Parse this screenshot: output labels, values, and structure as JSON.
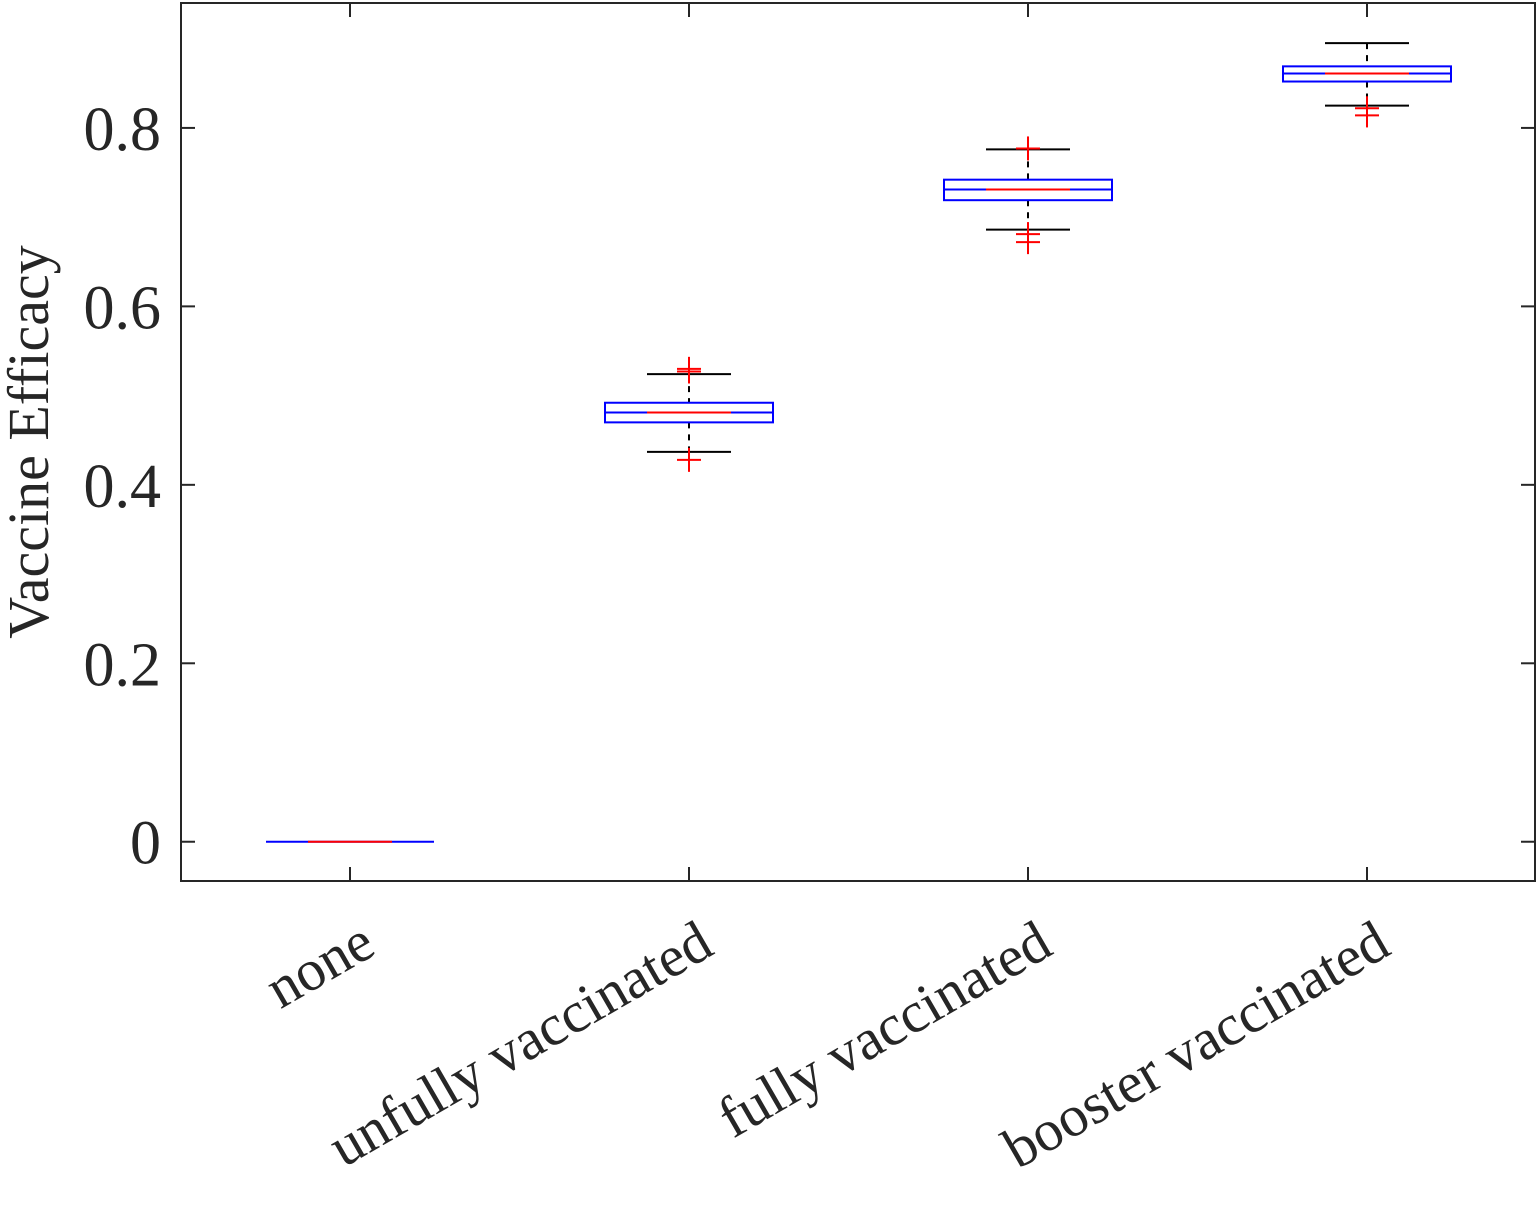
{
  "chart_data": {
    "type": "boxplot",
    "ylabel": "Vaccine Efficacy",
    "xlabel": "",
    "title": "",
    "ylim": [
      -0.044,
      0.94
    ],
    "yticks": [
      0,
      0.2,
      0.4,
      0.6,
      0.8
    ],
    "ytick_labels": [
      "0",
      "0.2",
      "0.4",
      "0.6",
      "0.8"
    ],
    "categories": [
      "none",
      "unfully vaccinated",
      "fully vaccinated",
      "booster vaccinated"
    ],
    "boxes": [
      {
        "category": "none",
        "whisker_low": 0.0,
        "q1": 0.0,
        "median": 0.0,
        "q3": 0.0,
        "whisker_high": 0.0,
        "outliers": []
      },
      {
        "category": "unfully vaccinated",
        "whisker_low": 0.437,
        "q1": 0.47,
        "median": 0.481,
        "q3": 0.492,
        "whisker_high": 0.524,
        "outliers": [
          0.428,
          0.527,
          0.53
        ]
      },
      {
        "category": "fully vaccinated",
        "whisker_low": 0.686,
        "q1": 0.719,
        "median": 0.731,
        "q3": 0.742,
        "whisker_high": 0.776,
        "outliers": [
          0.672,
          0.681,
          0.777
        ]
      },
      {
        "category": "booster vaccinated",
        "whisker_low": 0.825,
        "q1": 0.852,
        "median": 0.861,
        "q3": 0.869,
        "whisker_high": 0.895,
        "outliers": [
          0.814,
          0.822
        ]
      }
    ],
    "grid": false,
    "colors": {
      "box": "#0000ff",
      "median": "#ff0000",
      "whisker": "#000000",
      "outlier": "#ff0000",
      "axis": "#262626"
    }
  }
}
